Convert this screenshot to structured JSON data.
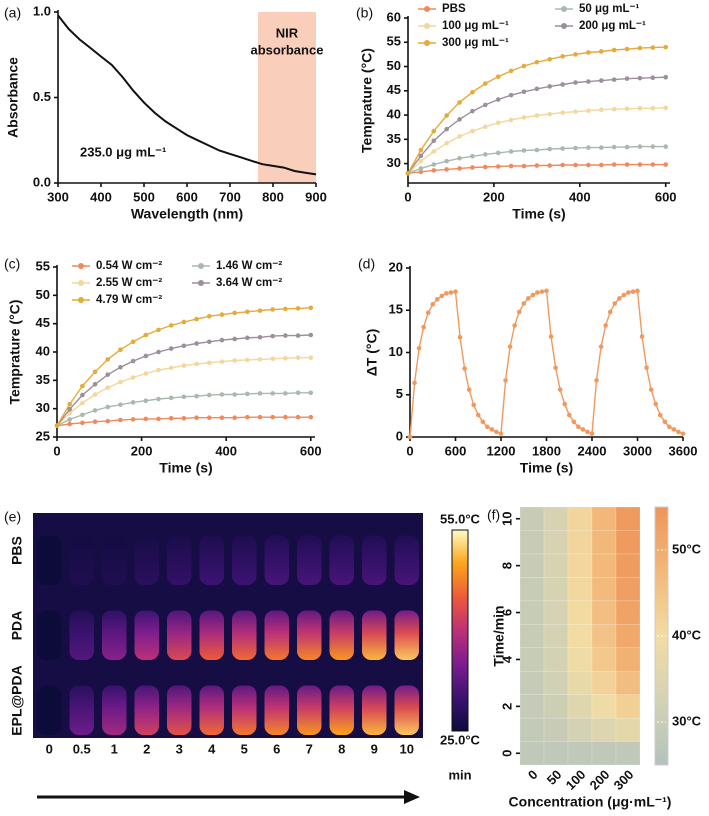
{
  "chart_data": [
    {
      "type": "line",
      "panel_label": "(a)",
      "xlabel": "Wavelength (nm)",
      "ylabel": "Absorbance",
      "x": [
        300,
        325,
        350,
        375,
        400,
        425,
        450,
        475,
        500,
        525,
        550,
        575,
        600,
        625,
        650,
        675,
        700,
        725,
        750,
        775,
        800,
        825,
        850,
        875,
        900
      ],
      "values": [
        0.98,
        0.9,
        0.84,
        0.79,
        0.74,
        0.69,
        0.62,
        0.54,
        0.47,
        0.41,
        0.36,
        0.32,
        0.28,
        0.25,
        0.22,
        0.19,
        0.17,
        0.15,
        0.13,
        0.11,
        0.1,
        0.09,
        0.07,
        0.06,
        0.05
      ],
      "color": "#111111",
      "markers": false,
      "xlim": [
        300,
        900
      ],
      "xticks": [
        300,
        400,
        500,
        600,
        700,
        800,
        900
      ],
      "ylim": [
        0,
        1
      ],
      "yticks": [
        {
          "value": 0,
          "label": "0.0"
        },
        0.5,
        {
          "value": 1,
          "label": "1.0"
        }
      ],
      "region": [
        765,
        900
      ],
      "region_color": "#f9cfbb",
      "region_label": [
        "NIR",
        "absorbance"
      ],
      "annotation": "235.0 μg mL⁻¹"
    },
    {
      "type": "line",
      "panel_label": "(b)",
      "xlabel": "Time (s)",
      "ylabel": "Temprature (°C)",
      "markers": true,
      "x": [
        0,
        30,
        60,
        90,
        120,
        150,
        180,
        210,
        240,
        270,
        300,
        330,
        360,
        390,
        420,
        450,
        480,
        510,
        540,
        570,
        600
      ],
      "series": [
        {
          "name": "PBS",
          "color": "#f08a5d",
          "values": [
            28.0,
            28.3,
            28.6,
            28.8,
            29.0,
            29.2,
            29.3,
            29.4,
            29.5,
            29.5,
            29.6,
            29.6,
            29.7,
            29.7,
            29.7,
            29.7,
            29.8,
            29.8,
            29.8,
            29.8,
            29.8
          ]
        },
        {
          "name": "50 μg mL⁻¹",
          "color": "#a9b9ae",
          "values": [
            28.0,
            29.0,
            29.8,
            30.5,
            31.1,
            31.5,
            31.9,
            32.2,
            32.5,
            32.7,
            32.8,
            33.0,
            33.1,
            33.2,
            33.3,
            33.3,
            33.4,
            33.4,
            33.5,
            33.5,
            33.5
          ]
        },
        {
          "name": "100 μg mL⁻¹",
          "color": "#f3d79c",
          "values": [
            28.0,
            30.5,
            32.5,
            34.2,
            35.6,
            36.7,
            37.6,
            38.4,
            39.0,
            39.5,
            39.9,
            40.2,
            40.5,
            40.7,
            40.9,
            41.1,
            41.2,
            41.3,
            41.4,
            41.4,
            41.5
          ]
        },
        {
          "name": "200 μg mL⁻¹",
          "color": "#9a8f9b",
          "values": [
            28.0,
            31.6,
            34.7,
            37.1,
            39.1,
            40.8,
            42.1,
            43.2,
            44.1,
            44.8,
            45.4,
            45.9,
            46.3,
            46.7,
            46.9,
            47.1,
            47.3,
            47.5,
            47.6,
            47.7,
            47.8
          ]
        },
        {
          "name": "300 μg mL⁻¹",
          "color": "#e6a93a",
          "values": [
            28.0,
            32.8,
            36.7,
            39.9,
            42.6,
            44.7,
            46.5,
            47.9,
            49.1,
            50.1,
            50.9,
            51.5,
            52.1,
            52.5,
            52.9,
            53.1,
            53.4,
            53.6,
            53.8,
            53.9,
            54.0
          ]
        }
      ],
      "xlim": [
        0,
        610
      ],
      "xticks": [
        0,
        200,
        400,
        600
      ],
      "ylim": [
        26,
        60
      ],
      "yticks": [
        30,
        35,
        40,
        45,
        50,
        55,
        60
      ]
    },
    {
      "type": "line",
      "panel_label": "(c)",
      "xlabel": "Time (s)",
      "ylabel": "Temprature (°C)",
      "markers": true,
      "x": [
        0,
        30,
        60,
        90,
        120,
        150,
        180,
        210,
        240,
        270,
        300,
        330,
        360,
        390,
        420,
        450,
        480,
        510,
        540,
        570,
        600
      ],
      "series": [
        {
          "name": "0.54 W cm⁻²",
          "color": "#f08a5d",
          "values": [
            27.0,
            27.3,
            27.5,
            27.7,
            27.8,
            28.0,
            28.1,
            28.2,
            28.2,
            28.3,
            28.3,
            28.4,
            28.4,
            28.4,
            28.4,
            28.5,
            28.5,
            28.5,
            28.5,
            28.5,
            28.5
          ]
        },
        {
          "name": "1.46 W cm⁻²",
          "color": "#a9b9ae",
          "values": [
            27.0,
            28.1,
            28.9,
            29.7,
            30.3,
            30.7,
            31.1,
            31.4,
            31.7,
            31.9,
            32.1,
            32.2,
            32.4,
            32.5,
            32.5,
            32.6,
            32.7,
            32.7,
            32.7,
            32.8,
            32.8
          ]
        },
        {
          "name": "2.55 W cm⁻²",
          "color": "#f3d79c",
          "values": [
            27.0,
            29.2,
            31.0,
            32.5,
            33.7,
            34.7,
            35.5,
            36.2,
            36.8,
            37.2,
            37.6,
            37.9,
            38.1,
            38.3,
            38.5,
            38.6,
            38.7,
            38.8,
            38.9,
            39.0,
            39.0
          ]
        },
        {
          "name": "3.64 W cm⁻²",
          "color": "#9a8f9b",
          "values": [
            27.0,
            29.9,
            32.4,
            34.3,
            36.0,
            37.3,
            38.4,
            39.3,
            40.0,
            40.6,
            41.1,
            41.5,
            41.8,
            42.1,
            42.3,
            42.5,
            42.6,
            42.8,
            42.9,
            42.9,
            43.0
          ]
        },
        {
          "name": "4.79 W cm⁻²",
          "color": "#e6a93a",
          "values": [
            27.0,
            30.8,
            34.0,
            36.5,
            38.7,
            40.4,
            41.8,
            43.0,
            43.9,
            44.7,
            45.3,
            45.8,
            46.3,
            46.6,
            46.9,
            47.1,
            47.3,
            47.5,
            47.6,
            47.7,
            47.8
          ]
        }
      ],
      "xlim": [
        0,
        610
      ],
      "xticks": [
        0,
        200,
        400,
        600
      ],
      "ylim": [
        25,
        55
      ],
      "yticks": [
        25,
        30,
        35,
        40,
        45,
        50,
        55
      ]
    },
    {
      "type": "line",
      "panel_label": "(d)",
      "xlabel": "Time (s)",
      "ylabel": "ΔT (°C)",
      "markers": true,
      "color": "#f0995f",
      "x": [
        0,
        60,
        120,
        180,
        240,
        300,
        360,
        420,
        480,
        540,
        600,
        660,
        720,
        780,
        840,
        900,
        960,
        1020,
        1080,
        1140,
        1200,
        1260,
        1320,
        1380,
        1440,
        1500,
        1560,
        1620,
        1680,
        1740,
        1800,
        1860,
        1920,
        1980,
        2040,
        2100,
        2160,
        2220,
        2280,
        2340,
        2400,
        2460,
        2520,
        2580,
        2640,
        2700,
        2760,
        2820,
        2880,
        2940,
        3000,
        3060,
        3120,
        3180,
        3240,
        3300,
        3360,
        3420,
        3480,
        3540,
        3600
      ],
      "values": [
        0,
        6.4,
        10.5,
        13.0,
        14.7,
        15.7,
        16.3,
        16.7,
        17.0,
        17.1,
        17.2,
        11.8,
        8.1,
        5.6,
        3.8,
        2.6,
        1.8,
        1.2,
        0.9,
        0.6,
        0.4,
        6.7,
        10.7,
        13.2,
        14.8,
        15.8,
        16.4,
        16.8,
        17.1,
        17.2,
        17.3,
        11.9,
        8.2,
        5.6,
        3.9,
        2.6,
        1.8,
        1.2,
        0.9,
        0.6,
        0.4,
        6.7,
        10.7,
        13.2,
        14.8,
        15.8,
        16.4,
        16.8,
        17.1,
        17.2,
        17.3,
        11.9,
        8.2,
        5.6,
        3.9,
        2.6,
        1.8,
        1.2,
        0.9,
        0.6,
        0.4
      ],
      "xlim": [
        0,
        3600
      ],
      "xticks": [
        0,
        600,
        1200,
        1800,
        2400,
        3000,
        3600
      ],
      "ylim": [
        0,
        20
      ],
      "yticks": [
        0,
        5,
        10,
        15,
        20
      ]
    },
    {
      "type": "thermal-image",
      "panel_label": "(e)",
      "xlabel": "min",
      "rows": [
        "PBS",
        "PDA",
        "EPL@PDA"
      ],
      "columns": [
        "0",
        "0.5",
        "1",
        "2",
        "3",
        "4",
        "5",
        "6",
        "7",
        "8",
        "9",
        "10"
      ],
      "values": [
        [
          25,
          27,
          27,
          28,
          29,
          30,
          30,
          31,
          31,
          31,
          31,
          31
        ],
        [
          25,
          32,
          36,
          40,
          43,
          45,
          46,
          47,
          48,
          49,
          51,
          52
        ],
        [
          25,
          34,
          38,
          42,
          44,
          46,
          47,
          48,
          49,
          50,
          51,
          52
        ]
      ],
      "clim": [
        25,
        55
      ],
      "cticks": [
        {
          "value": 55,
          "label": "55.0°C"
        },
        {
          "value": 25,
          "label": "25.0°C"
        }
      ],
      "colormap": [
        "#0d0b3a",
        "#3b1372",
        "#7c1d8e",
        "#bc3178",
        "#ee5a3a",
        "#fba51a",
        "#fdfbc4"
      ]
    },
    {
      "type": "heatmap",
      "panel_label": "(f)",
      "xlabel": "Concentration (μg·mL⁻¹)",
      "ylabel": "Time/min",
      "x": [
        "0",
        "50",
        "100",
        "200",
        "300"
      ],
      "y": [
        0,
        1,
        2,
        3,
        4,
        5,
        6,
        7,
        8,
        9,
        10
      ],
      "values": [
        [
          28.0,
          28.0,
          28.0,
          28.0,
          28.0
        ],
        [
          28.6,
          29.8,
          32.5,
          34.7,
          36.7
        ],
        [
          29.0,
          31.1,
          35.6,
          39.1,
          42.6
        ],
        [
          29.3,
          31.9,
          37.6,
          42.1,
          46.5
        ],
        [
          29.5,
          32.5,
          39.0,
          44.1,
          49.1
        ],
        [
          29.6,
          32.8,
          39.9,
          45.4,
          50.9
        ],
        [
          29.7,
          33.1,
          40.5,
          46.3,
          52.1
        ],
        [
          29.7,
          33.3,
          40.9,
          46.9,
          52.9
        ],
        [
          29.8,
          33.4,
          41.2,
          47.3,
          53.4
        ],
        [
          29.8,
          33.5,
          41.4,
          47.6,
          53.8
        ],
        [
          29.8,
          33.5,
          41.5,
          47.8,
          54.0
        ]
      ],
      "ylim": [
        -0.5,
        10.5
      ],
      "yticks": [
        0,
        2,
        4,
        6,
        8,
        10
      ],
      "clim": [
        25,
        55
      ],
      "cticks": [
        {
          "value": 30,
          "label": "30°C"
        },
        {
          "value": 40,
          "label": "40°C"
        },
        {
          "value": 50,
          "label": "50°C"
        }
      ],
      "colormap": [
        "#b4c2bc",
        "#d3d2b4",
        "#f2dca4",
        "#f2b87a",
        "#ee955a"
      ]
    }
  ]
}
